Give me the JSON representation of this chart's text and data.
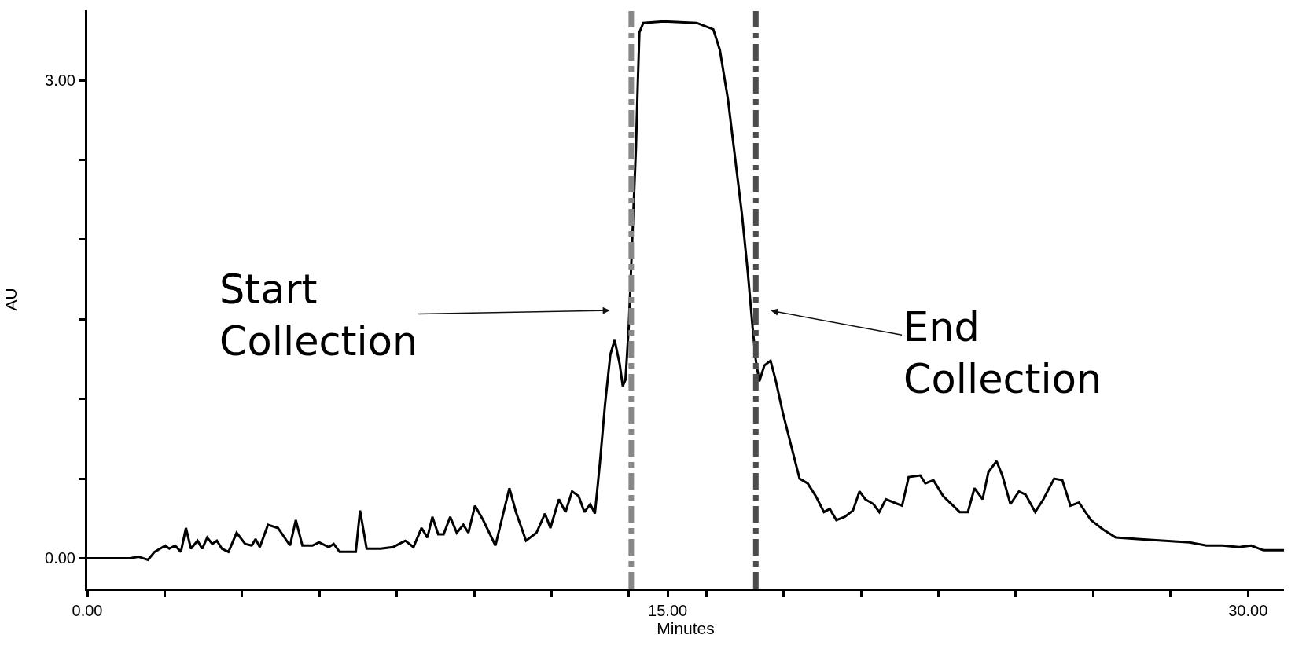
{
  "chart_data": {
    "type": "line",
    "xlabel": "Minutes",
    "ylabel": "AU",
    "xlim": [
      0,
      30.93
    ],
    "ylim": [
      -0.19,
      3.44
    ],
    "xticks": [
      {
        "value": 0,
        "label": "0.00"
      },
      {
        "value": 2,
        "label": null
      },
      {
        "value": 4,
        "label": null
      },
      {
        "value": 6,
        "label": null
      },
      {
        "value": 8,
        "label": null
      },
      {
        "value": 10,
        "label": null
      },
      {
        "value": 12,
        "label": null
      },
      {
        "value": 14,
        "label": null
      },
      {
        "value": 15,
        "label": "15.00"
      },
      {
        "value": 16,
        "label": null
      },
      {
        "value": 18,
        "label": null
      },
      {
        "value": 20,
        "label": null
      },
      {
        "value": 22,
        "label": null
      },
      {
        "value": 24,
        "label": null
      },
      {
        "value": 26,
        "label": null
      },
      {
        "value": 28,
        "label": null
      },
      {
        "value": 30,
        "label": "30.00"
      }
    ],
    "yticks": [
      {
        "value": 0,
        "label": "0.00"
      },
      {
        "value": 0.5,
        "label": null
      },
      {
        "value": 1,
        "label": null
      },
      {
        "value": 1.5,
        "label": null
      },
      {
        "value": 2,
        "label": null
      },
      {
        "value": 2.5,
        "label": null
      },
      {
        "value": 3,
        "label": "3.00"
      }
    ],
    "marker": "none",
    "line_style": "solid",
    "x": [
      0,
      1.1,
      1.32,
      1.57,
      1.74,
      2.02,
      2.12,
      2.27,
      2.42,
      2.55,
      2.68,
      2.85,
      2.97,
      3.1,
      3.23,
      3.35,
      3.48,
      3.65,
      3.86,
      4.08,
      4.25,
      4.35,
      4.46,
      4.67,
      4.93,
      5.24,
      5.39,
      5.56,
      5.82,
      5.99,
      6.24,
      6.37,
      6.52,
      6.94,
      7.05,
      7.22,
      7.58,
      7.9,
      8.22,
      8.43,
      8.64,
      8.79,
      8.92,
      9.07,
      9.21,
      9.38,
      9.55,
      9.72,
      9.85,
      10.02,
      10.23,
      10.55,
      10.91,
      11.08,
      11.34,
      11.61,
      11.83,
      11.97,
      12.19,
      12.36,
      12.53,
      12.7,
      12.85,
      13.0,
      13.12,
      13.25,
      13.38,
      13.52,
      13.63,
      13.76,
      13.84,
      13.91,
      13.99,
      14.06,
      14.12,
      14.18,
      14.23,
      14.27,
      14.37,
      14.9,
      15.75,
      16.18,
      16.35,
      16.56,
      16.77,
      16.92,
      17.07,
      17.2,
      17.28,
      17.37,
      17.5,
      17.66,
      17.79,
      17.98,
      18.2,
      18.41,
      18.62,
      18.83,
      19.04,
      19.19,
      19.36,
      19.58,
      19.79,
      19.96,
      20.11,
      20.32,
      20.47,
      20.64,
      20.85,
      21.06,
      21.23,
      21.53,
      21.66,
      21.87,
      22.12,
      22.55,
      22.76,
      22.93,
      23.14,
      23.29,
      23.5,
      23.65,
      23.86,
      24.08,
      24.25,
      24.5,
      24.71,
      24.99,
      25.2,
      25.41,
      25.63,
      25.94,
      26.26,
      26.58,
      27.22,
      27.86,
      28.49,
      28.92,
      29.34,
      29.77,
      30.08,
      30.4,
      30.93
    ],
    "series": [
      {
        "color": "#000000",
        "values": [
          0,
          0,
          0.01,
          -0.01,
          0.04,
          0.08,
          0.06,
          0.08,
          0.04,
          0.19,
          0.06,
          0.11,
          0.06,
          0.13,
          0.09,
          0.11,
          0.06,
          0.04,
          0.16,
          0.09,
          0.08,
          0.12,
          0.07,
          0.21,
          0.19,
          0.08,
          0.24,
          0.08,
          0.08,
          0.1,
          0.07,
          0.09,
          0.04,
          0.04,
          0.3,
          0.06,
          0.06,
          0.07,
          0.11,
          0.07,
          0.19,
          0.13,
          0.26,
          0.15,
          0.15,
          0.26,
          0.16,
          0.21,
          0.16,
          0.33,
          0.24,
          0.08,
          0.44,
          0.29,
          0.11,
          0.16,
          0.28,
          0.19,
          0.37,
          0.29,
          0.42,
          0.39,
          0.29,
          0.34,
          0.28,
          0.6,
          0.96,
          1.28,
          1.37,
          1.22,
          1.08,
          1.12,
          1.43,
          1.84,
          2.21,
          2.57,
          2.99,
          3.3,
          3.36,
          3.37,
          3.36,
          3.32,
          3.19,
          2.88,
          2.46,
          2.16,
          1.8,
          1.44,
          1.24,
          1.11,
          1.21,
          1.24,
          1.12,
          0.91,
          0.7,
          0.5,
          0.47,
          0.39,
          0.29,
          0.31,
          0.24,
          0.26,
          0.3,
          0.42,
          0.37,
          0.34,
          0.29,
          0.37,
          0.35,
          0.33,
          0.51,
          0.52,
          0.47,
          0.49,
          0.39,
          0.29,
          0.29,
          0.44,
          0.37,
          0.54,
          0.61,
          0.52,
          0.34,
          0.42,
          0.4,
          0.29,
          0.37,
          0.5,
          0.49,
          0.33,
          0.35,
          0.24,
          0.18,
          0.13,
          0.12,
          0.11,
          0.1,
          0.08,
          0.08,
          0.07,
          0.08,
          0.05,
          0.05
        ]
      }
    ],
    "ref_lines": [
      {
        "axis": "x",
        "value": 14.06,
        "color": "#888888",
        "line_style": "dashdot"
      },
      {
        "axis": "x",
        "value": 17.28,
        "color": "#4d4d4d",
        "line_style": "dashdot"
      }
    ],
    "annotations": [
      "Start\nCollection",
      "End\nCollection"
    ]
  }
}
